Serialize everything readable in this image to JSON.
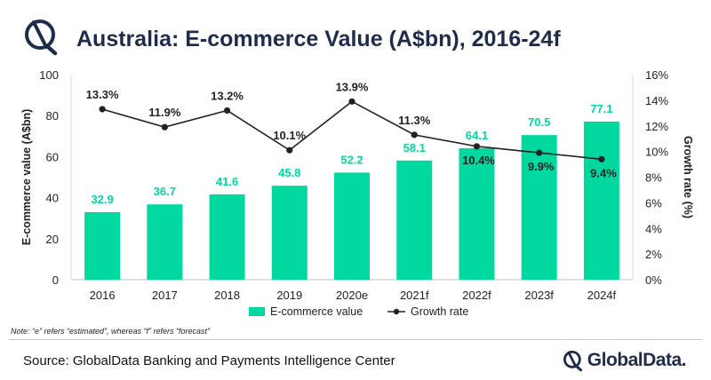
{
  "header": {
    "title": "Australia: E-commerce Value (A$bn), 2016-24f"
  },
  "chart_data": {
    "type": "bar",
    "categories": [
      "2016",
      "2017",
      "2018",
      "2019",
      "2020e",
      "2021f",
      "2022f",
      "2023f",
      "2024f"
    ],
    "series": [
      {
        "name": "E-commerce value",
        "type": "bar",
        "axis": "left",
        "color": "#00d8a0",
        "values": [
          32.9,
          36.7,
          41.6,
          45.8,
          52.2,
          58.1,
          64.1,
          70.5,
          77.1
        ],
        "labels": [
          "32.9",
          "36.7",
          "41.6",
          "45.8",
          "52.2",
          "58.1",
          "64.1",
          "70.5",
          "77.1"
        ]
      },
      {
        "name": "Growth rate",
        "type": "line",
        "axis": "right",
        "color": "#222222",
        "values": [
          13.3,
          11.9,
          13.2,
          10.1,
          13.9,
          11.3,
          10.4,
          9.9,
          9.4
        ],
        "labels": [
          "13.3%",
          "11.9%",
          "13.2%",
          "10.1%",
          "13.9%",
          "11.3%",
          "10.4%",
          "9.9%",
          "9.4%"
        ]
      }
    ],
    "ylabel": "E-commerce value (A$bn)",
    "ylabel_right": "Growth rate (%)",
    "ylim": [
      0,
      100
    ],
    "yticks": [
      "0",
      "20",
      "40",
      "60",
      "80",
      "100"
    ],
    "ylim_right": [
      0,
      16
    ],
    "yticks_right": [
      "0%",
      "2%",
      "4%",
      "6%",
      "8%",
      "10%",
      "12%",
      "14%",
      "16%"
    ],
    "grid": false,
    "legend": "bottom-center"
  },
  "footer": {
    "note": "Note: “e” refers “estimated”, whereas “f” refers “forecast”",
    "source": "Source: GlobalData Banking and Payments Intelligence Center",
    "brand": "GlobalData."
  }
}
